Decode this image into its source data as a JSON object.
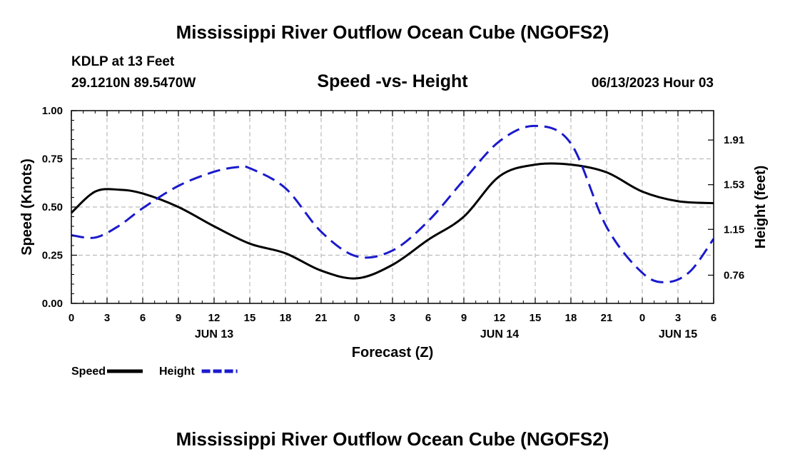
{
  "header": {
    "title": "Mississippi River Outflow Ocean Cube (NGOFS2)",
    "station": "KDLP at 13 Feet",
    "coords": "29.1210N  89.5470W",
    "subtitle": "Speed -vs- Height",
    "timestamp": "06/13/2023 Hour 03"
  },
  "footer": {
    "title": "Mississippi River Outflow Ocean Cube (NGOFS2)"
  },
  "colors": {
    "speed": "#000000",
    "height": "#1a1acc",
    "grid": "#bbbbbb"
  },
  "chart_data": {
    "type": "line",
    "title": "Speed -vs- Height",
    "xlabel": "Forecast (Z)",
    "ylabel_left": "Speed (Knots)",
    "ylabel_right": "Height (feet)",
    "x_range": [
      0,
      54
    ],
    "x_ticks": [
      0,
      3,
      6,
      9,
      12,
      15,
      18,
      21,
      24,
      27,
      30,
      33,
      36,
      39,
      42,
      45,
      48,
      51,
      54
    ],
    "x_tick_labels": [
      "0",
      "3",
      "6",
      "9",
      "12",
      "15",
      "18",
      "21",
      "0",
      "3",
      "6",
      "9",
      "12",
      "15",
      "18",
      "21",
      "0",
      "3",
      "6"
    ],
    "date_labels": [
      {
        "x": 12,
        "label": "JUN 13"
      },
      {
        "x": 36,
        "label": "JUN 14"
      },
      {
        "x": 51,
        "label": "JUN 15"
      }
    ],
    "left_axis": {
      "range": [
        0,
        1
      ],
      "ticks": [
        0,
        0.25,
        0.5,
        0.75,
        1.0
      ],
      "tick_labels": [
        "0.00",
        "0.25",
        "0.50",
        "0.75",
        "1.00"
      ]
    },
    "right_axis": {
      "range": [
        0.52,
        2.16
      ],
      "ticks": [
        0.76,
        1.15,
        1.53,
        1.91
      ],
      "tick_labels": [
        "0.76",
        "1.15",
        "1.53",
        "1.91"
      ]
    },
    "grid": true,
    "legend": "bottom-left",
    "series": [
      {
        "name": "Speed",
        "axis": "left",
        "style": "solid",
        "x": [
          0,
          2,
          4,
          6,
          9,
          12,
          15,
          18,
          21,
          24,
          27,
          30,
          33,
          36,
          39,
          42,
          45,
          48,
          51,
          54
        ],
        "values": [
          0.47,
          0.58,
          0.59,
          0.57,
          0.5,
          0.4,
          0.31,
          0.26,
          0.17,
          0.13,
          0.2,
          0.33,
          0.45,
          0.66,
          0.72,
          0.72,
          0.68,
          0.58,
          0.53,
          0.52
        ]
      },
      {
        "name": "Height",
        "axis": "right",
        "style": "dashed",
        "x": [
          0,
          2,
          4,
          6,
          9,
          12,
          14,
          15,
          18,
          21,
          24,
          27,
          30,
          33,
          36,
          39,
          42,
          45,
          48,
          50,
          52,
          54
        ],
        "values": [
          1.1,
          1.08,
          1.18,
          1.33,
          1.52,
          1.64,
          1.68,
          1.67,
          1.5,
          1.13,
          0.92,
          0.97,
          1.22,
          1.57,
          1.9,
          2.03,
          1.88,
          1.17,
          0.78,
          0.7,
          0.79,
          1.07
        ]
      }
    ]
  }
}
